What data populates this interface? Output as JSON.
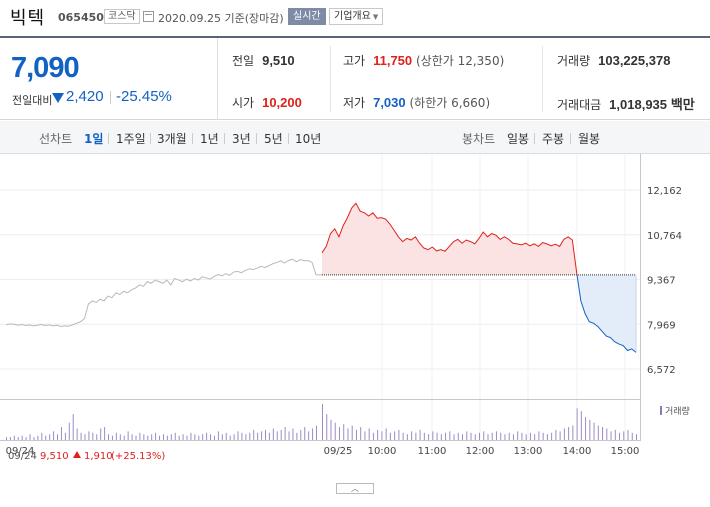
{
  "header": {
    "name": "빅텍",
    "code": "065450",
    "market": "코스닥",
    "date": "2020.09.25 기준(장마감)",
    "realtime_label": "실시간",
    "overview_label": "기업개요"
  },
  "price": {
    "current": "7,090",
    "change_label": "전일대비",
    "change_value": "2,420",
    "change_percent": "-25.45%",
    "direction": "down"
  },
  "stats": {
    "prev_label": "전일",
    "prev_value": "9,510",
    "high_label": "고가",
    "high_value": "11,750",
    "high_sub": "(상한가 12,350)",
    "volume_label": "거래량",
    "volume_value": "103,225,378",
    "open_label": "시가",
    "open_value": "10,200",
    "low_label": "저가",
    "low_value": "7,030",
    "low_sub": "(하한가 6,660)",
    "amount_label": "거래대금",
    "amount_value": "1,018,935",
    "amount_unit": "백만"
  },
  "periods": {
    "line_label": "선차트",
    "items": [
      "1일",
      "1주일",
      "3개월",
      "1년",
      "3년",
      "5년",
      "10년"
    ],
    "active": "1일",
    "candle_label": "봉차트",
    "candle_items": [
      "일봉",
      "주봉",
      "월봉"
    ]
  },
  "chart_data": {
    "type": "line",
    "y_ticks": [
      "12,162",
      "10,764",
      "9,367",
      "7,969",
      "6,572"
    ],
    "ylim": [
      6572,
      12162
    ],
    "reference_price": 9510,
    "x_labels": [
      "09/24",
      "09/25",
      "10:00",
      "11:00",
      "12:00",
      "13:00",
      "14:00",
      "15:00"
    ],
    "volume_legend": "거래량",
    "prev_day_summary": {
      "date": "09/24",
      "close": "9,510",
      "change": "1,910",
      "change_pct": "(+25.13%)"
    },
    "prev_day_series": [
      7950,
      7980,
      7970,
      7940,
      7960,
      7930,
      7950,
      7920,
      7940,
      7960,
      7930,
      7950,
      7920,
      7940,
      7900,
      7920,
      7910,
      7950,
      8000,
      8050,
      8150,
      8600,
      8700,
      8650,
      8750,
      8700,
      8850,
      8800,
      8950,
      8900,
      9000,
      8950,
      9050,
      9100,
      9200,
      9150,
      9300,
      9250,
      9350,
      9300,
      9250,
      9350,
      9200,
      9400,
      9350,
      9300,
      9380,
      9320,
      9400,
      9350,
      9450,
      9420,
      9380,
      9460,
      9520,
      9480,
      9550,
      9500,
      9600,
      9620,
      9580,
      9650,
      9700,
      9680,
      9720,
      9780,
      9740,
      9800,
      9860,
      9900,
      9950,
      9880,
      9960,
      10000,
      9920,
      9990,
      9950,
      9960,
      9900,
      9510
    ],
    "today_series": [
      10200,
      10400,
      10800,
      10950,
      10700,
      11050,
      11300,
      11600,
      11750,
      11500,
      11450,
      11350,
      11450,
      11280,
      11300,
      11250,
      11100,
      10900,
      10700,
      10550,
      10650,
      10600,
      10700,
      10500,
      10350,
      10300,
      10380,
      10260,
      10300,
      10250,
      10400,
      10550,
      10620,
      10500,
      10600,
      10550,
      10480,
      10650,
      10850,
      10700,
      10800,
      10750,
      10620,
      10700,
      10620,
      10500,
      10480,
      10450,
      10500,
      10420,
      10480,
      10400,
      10520,
      10480,
      10420,
      10470,
      10400,
      10620,
      10700,
      10600,
      9600,
      8700,
      8300,
      8050,
      8000,
      7900,
      7750,
      7600,
      7550,
      7420,
      7350,
      7300,
      7150,
      7200,
      7090
    ],
    "prev_day_volume": [
      2,
      2,
      3,
      2,
      3,
      2,
      4,
      2,
      3,
      5,
      3,
      4,
      6,
      4,
      9,
      5,
      12,
      18,
      8,
      5,
      4,
      6,
      5,
      4,
      8,
      9,
      4,
      3,
      5,
      4,
      3,
      6,
      4,
      3,
      5,
      4,
      3,
      4,
      5,
      3,
      4,
      3,
      4,
      5,
      3,
      4,
      3,
      5,
      4,
      3,
      4,
      5,
      4,
      3,
      6,
      4,
      5,
      3,
      4,
      6,
      5,
      4,
      5,
      7,
      5,
      6,
      7,
      5,
      8,
      6,
      7,
      9,
      6,
      8,
      5,
      7,
      9,
      6,
      8,
      10
    ],
    "today_volume": [
      25,
      18,
      14,
      12,
      9,
      11,
      8,
      10,
      7,
      9,
      6,
      8,
      5,
      7,
      6,
      8,
      5,
      6,
      7,
      5,
      4,
      6,
      5,
      7,
      5,
      4,
      6,
      5,
      4,
      5,
      6,
      4,
      5,
      4,
      6,
      5,
      4,
      5,
      6,
      4,
      5,
      6,
      5,
      4,
      5,
      4,
      6,
      5,
      4,
      5,
      4,
      6,
      5,
      4,
      5,
      7,
      6,
      8,
      9,
      10,
      22,
      20,
      16,
      14,
      12,
      10,
      9,
      8,
      6,
      7,
      5,
      6,
      7,
      5,
      4
    ]
  }
}
